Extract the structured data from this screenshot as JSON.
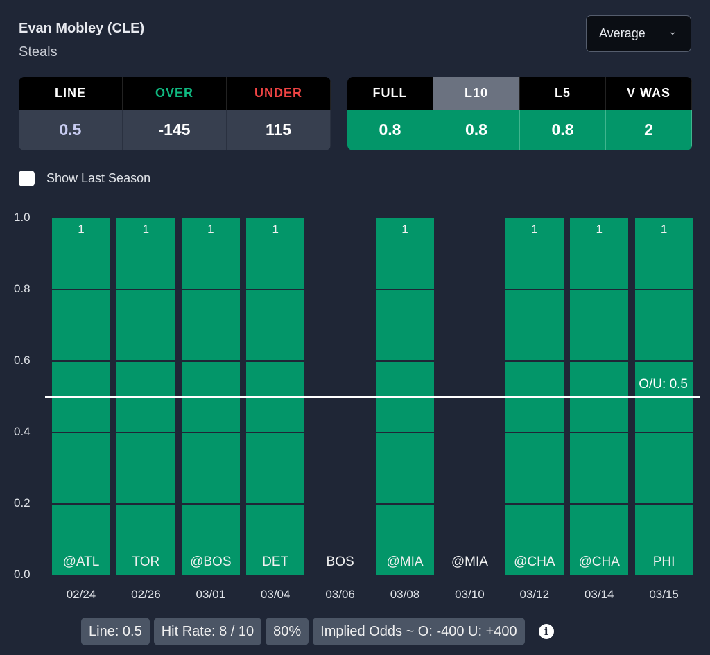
{
  "header": {
    "player": "Evan Mobley (CLE)",
    "stat": "Steals",
    "dropdown": "Average"
  },
  "odds": {
    "headers": [
      "LINE",
      "OVER",
      "UNDER"
    ],
    "values": [
      "0.5",
      "-145",
      "115"
    ],
    "colors": [
      "#ffffff",
      "#10b981",
      "#ef4444"
    ],
    "value_colors": [
      "#c7cbf0",
      "#ffffff",
      "#ffffff"
    ]
  },
  "averages": {
    "headers": [
      "FULL",
      "L10",
      "L5",
      "V WAS"
    ],
    "values": [
      "0.8",
      "0.8",
      "0.8",
      "2"
    ],
    "selected": "L10"
  },
  "checkbox": {
    "label": "Show Last Season",
    "checked": false
  },
  "chart_data": {
    "type": "bar",
    "ylim": [
      0,
      1
    ],
    "yticks": [
      "0.0",
      "0.2",
      "0.4",
      "0.6",
      "0.8",
      "1.0"
    ],
    "categories": [
      "02/24",
      "02/26",
      "03/01",
      "03/04",
      "03/06",
      "03/08",
      "03/10",
      "03/12",
      "03/14",
      "03/15"
    ],
    "opponents": [
      "@ATL",
      "TOR",
      "@BOS",
      "DET",
      "BOS",
      "@MIA",
      "@MIA",
      "@CHA",
      "@CHA",
      "PHI"
    ],
    "values": [
      1,
      1,
      1,
      1,
      0,
      1,
      0,
      1,
      1,
      1
    ],
    "line": 0.5,
    "line_label": "O/U: 0.5",
    "color": "#039669"
  },
  "footer": {
    "line": "Line: 0.5",
    "hit_rate": "Hit Rate: 8 / 10",
    "pct": "80%",
    "implied": "Implied Odds ~ O: -400 U: +400"
  }
}
